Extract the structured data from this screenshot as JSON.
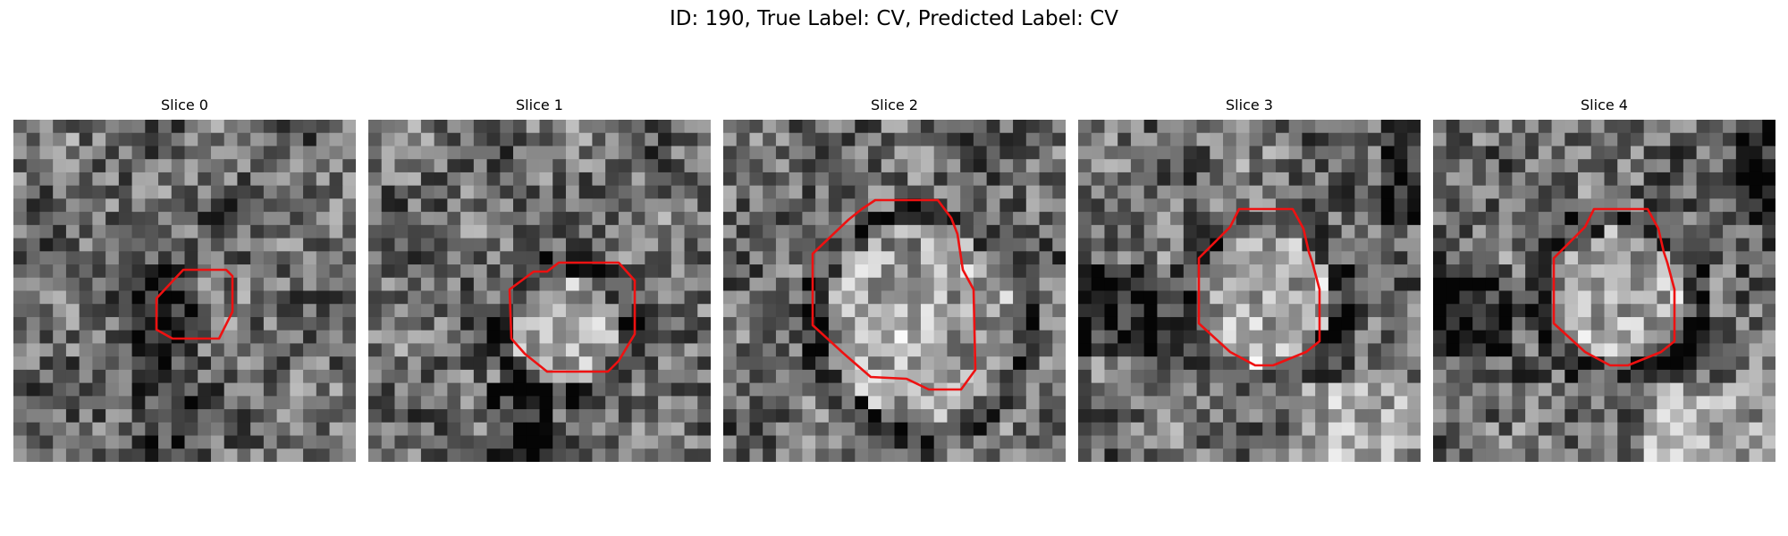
{
  "figure": {
    "title": "ID: 190, True Label: CV, Predicted Label: CV"
  },
  "panels": [
    {
      "title": "Slice 0"
    },
    {
      "title": "Slice 1"
    },
    {
      "title": "Slice 2"
    },
    {
      "title": "Slice 3"
    },
    {
      "title": "Slice 4"
    }
  ],
  "colors": {
    "contour": "#ee1111",
    "background": "#ffffff"
  },
  "colormap": "gray"
}
